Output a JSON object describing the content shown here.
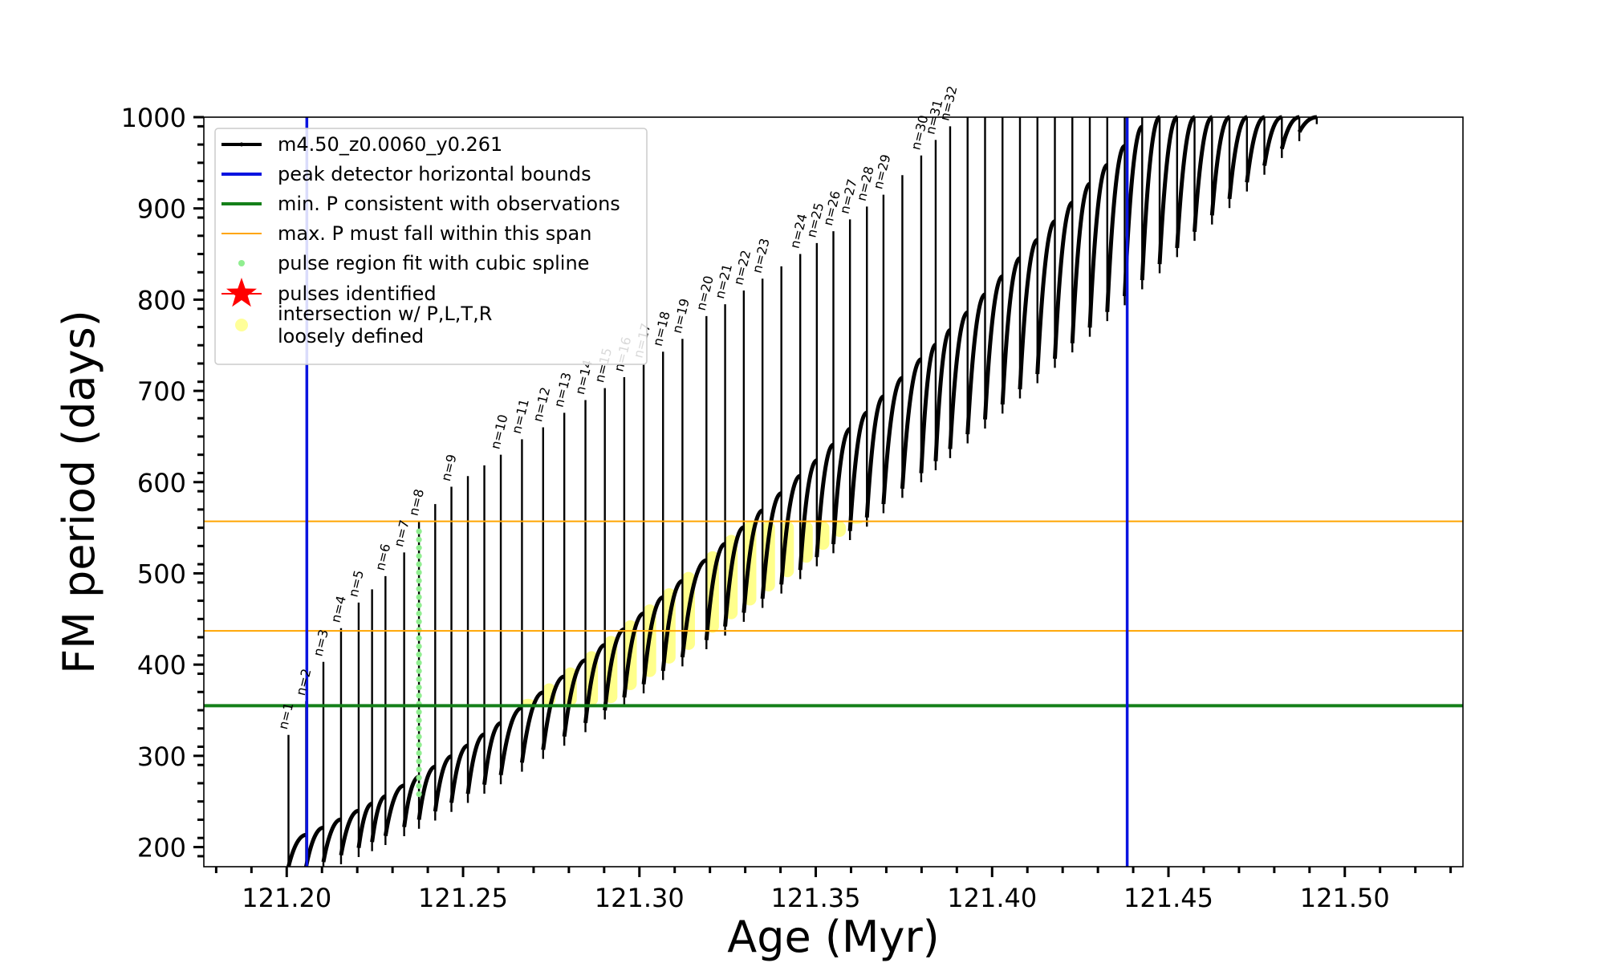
{
  "chart_data": {
    "type": "line",
    "xlabel": "Age (Myr)",
    "ylabel": "FM period (days)",
    "xlim": [
      121.1765,
      121.5335
    ],
    "ylim": [
      178.5,
      1000
    ],
    "xticks": [
      121.2,
      121.25,
      121.3,
      121.35,
      121.4,
      121.45,
      121.5
    ],
    "xtick_labels": [
      "121.20",
      "121.25",
      "121.30",
      "121.35",
      "121.40",
      "121.45",
      "121.50"
    ],
    "yticks": [
      200,
      300,
      400,
      500,
      600,
      700,
      800,
      900,
      1000
    ],
    "ytick_labels": [
      "200",
      "300",
      "400",
      "500",
      "600",
      "700",
      "800",
      "900",
      "1000"
    ],
    "legend": {
      "position": "upper-left",
      "entries": [
        {
          "label": "m4.50_z0.0060_y0.261",
          "color": "#000000",
          "marker": "line-dot"
        },
        {
          "label": "peak detector horizontal bounds",
          "color": "#0a14e0",
          "marker": "line"
        },
        {
          "label": "min. P consistent with observations",
          "color": "#15801a",
          "marker": "line"
        },
        {
          "label": "max. P must fall within this span",
          "color": "#ffa500",
          "marker": "line"
        },
        {
          "label": "pulse region fit with cubic spline",
          "color": "#90ee90",
          "marker": "dot"
        },
        {
          "label": "pulses identified",
          "color": "#ff0000",
          "marker": "star"
        },
        {
          "label": "intersection w/ P,L,T,R\nloosely defined",
          "color": "#ffff99",
          "marker": "dot"
        }
      ]
    },
    "vertical_lines": [
      {
        "name": "peak detector horizontal bounds",
        "x": 121.2057,
        "color": "#0a14e0"
      },
      {
        "name": "peak detector horizontal bounds",
        "x": 121.4383,
        "color": "#0a14e0"
      }
    ],
    "horizontal_lines": [
      {
        "name": "min. P consistent with observations",
        "y": 355,
        "color": "#15801a"
      },
      {
        "name": "max. P span lower",
        "y": 437,
        "color": "#ffa500"
      },
      {
        "name": "max. P span upper",
        "y": 557,
        "color": "#ffa500"
      }
    ],
    "envelope": {
      "start": {
        "age": 121.192,
        "period": 198
      },
      "end": {
        "age": 121.445,
        "period": 1000
      },
      "tail_end_age": 121.494
    },
    "pulses": [
      {
        "label": "n=1",
        "age": 121.2005,
        "peak": 323
      },
      {
        "label": "n=2",
        "age": 121.2055,
        "peak": 360
      },
      {
        "label": "n=3",
        "age": 121.2104,
        "peak": 403
      },
      {
        "label": "n=4",
        "age": 121.2154,
        "peak": 440
      },
      {
        "label": "n=5",
        "age": 121.2204,
        "peak": 468
      },
      {
        "label": "n=6",
        "age": 121.228,
        "peak": 497
      },
      {
        "label": "n=7",
        "age": 121.2333,
        "peak": 523
      },
      {
        "label": "n=8",
        "age": 121.2375,
        "peak": 557
      },
      {
        "label": "n=9",
        "age": 121.2467,
        "peak": 595
      },
      {
        "label": "n=10",
        "age": 121.2607,
        "peak": 630
      },
      {
        "label": "n=11",
        "age": 121.2667,
        "peak": 647
      },
      {
        "label": "n=12",
        "age": 121.2727,
        "peak": 660
      },
      {
        "label": "n=13",
        "age": 121.2787,
        "peak": 676
      },
      {
        "label": "n=14",
        "age": 121.2847,
        "peak": 690
      },
      {
        "label": "n=15",
        "age": 121.2902,
        "peak": 703
      },
      {
        "label": "n=16",
        "age": 121.2957,
        "peak": 715
      },
      {
        "label": "n=17",
        "age": 121.3012,
        "peak": 730
      },
      {
        "label": "n=18",
        "age": 121.3067,
        "peak": 743
      },
      {
        "label": "n=19",
        "age": 121.3122,
        "peak": 757
      },
      {
        "label": "n=20",
        "age": 121.319,
        "peak": 782
      },
      {
        "label": "n=21",
        "age": 121.3243,
        "peak": 795
      },
      {
        "label": "n=22",
        "age": 121.3296,
        "peak": 810
      },
      {
        "label": "n=23",
        "age": 121.3349,
        "peak": 823
      },
      {
        "label": "n=24",
        "age": 121.3456,
        "peak": 850
      },
      {
        "label": "n=25",
        "age": 121.3503,
        "peak": 862
      },
      {
        "label": "n=26",
        "age": 121.355,
        "peak": 875
      },
      {
        "label": "n=27",
        "age": 121.3597,
        "peak": 888
      },
      {
        "label": "n=28",
        "age": 121.3645,
        "peak": 902
      },
      {
        "label": "n=29",
        "age": 121.3692,
        "peak": 915
      },
      {
        "label": "n=30",
        "age": 121.3799,
        "peak": 958
      },
      {
        "label": "n=31",
        "age": 121.384,
        "peak": 975
      },
      {
        "label": "n=32",
        "age": 121.3881,
        "peak": 990
      }
    ],
    "pulse_spacing_myr": 0.00495
  }
}
